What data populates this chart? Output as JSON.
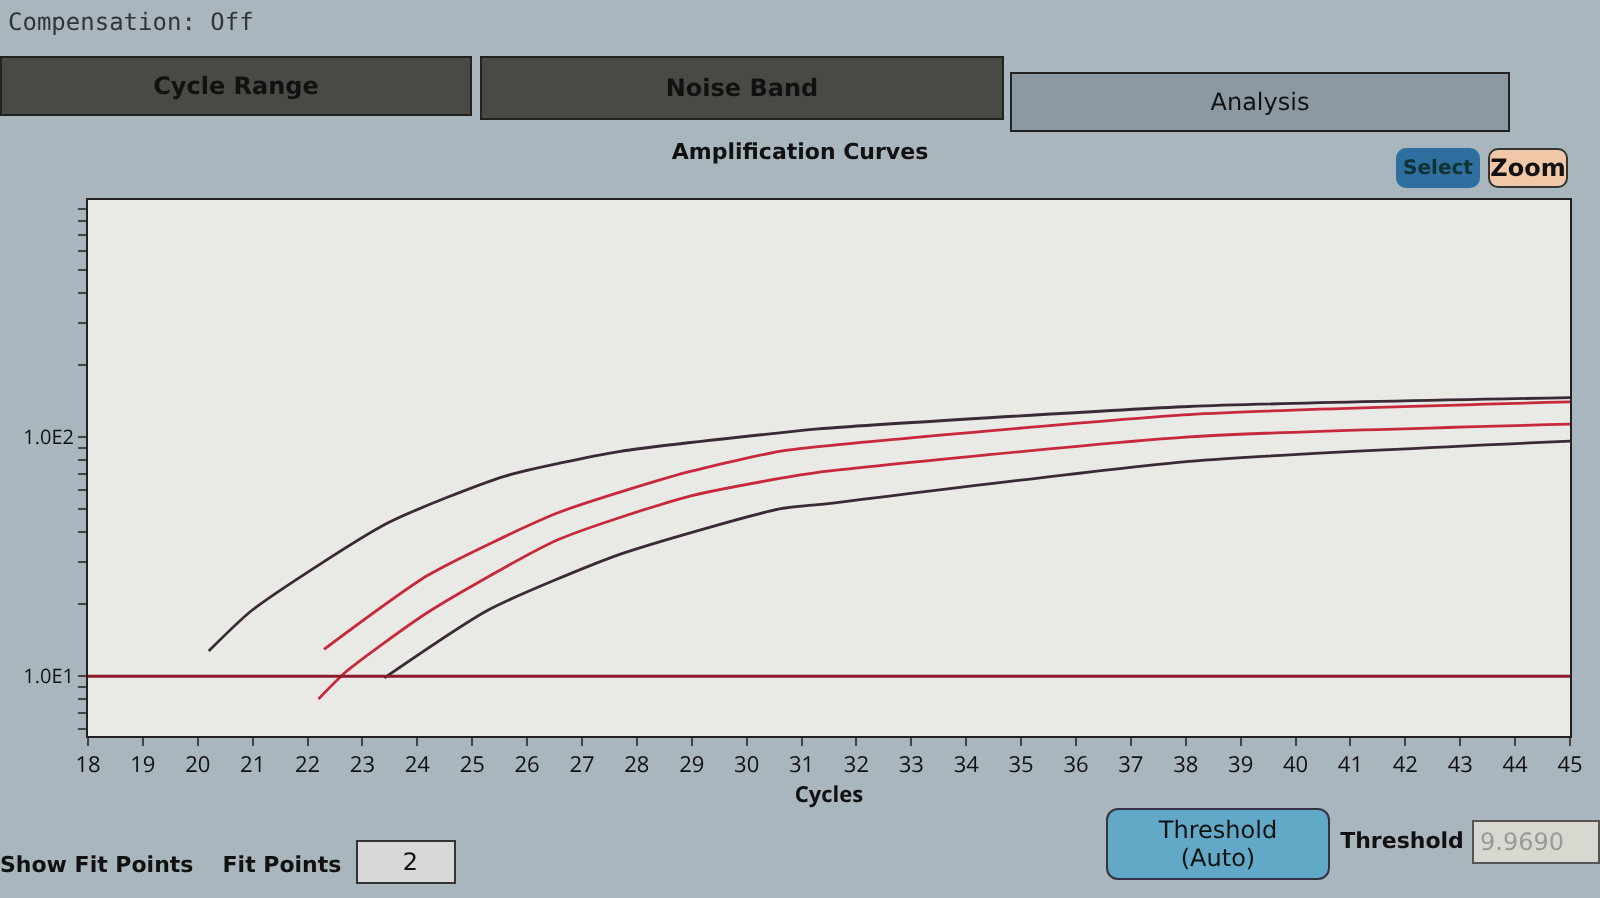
{
  "chart_data": {
    "type": "line",
    "title": "Amplification Curves",
    "xlabel": "Cycles",
    "log": "y",
    "xlim": [
      18,
      45
    ],
    "xticks": [
      18,
      19,
      20,
      21,
      22,
      23,
      24,
      25,
      26,
      27,
      28,
      29,
      30,
      31,
      32,
      33,
      34,
      35,
      36,
      37,
      38,
      39,
      40,
      41,
      42,
      43,
      44,
      45
    ],
    "ylim": [
      5.6,
      980
    ],
    "yticks": [
      {
        "value": 6,
        "label": null
      },
      {
        "value": 7,
        "label": null
      },
      {
        "value": 8,
        "label": null
      },
      {
        "value": 9,
        "label": null
      },
      {
        "value": 10,
        "label": "1.0E1"
      },
      {
        "value": 20,
        "label": null
      },
      {
        "value": 30,
        "label": null
      },
      {
        "value": 40,
        "label": null
      },
      {
        "value": 50,
        "label": null
      },
      {
        "value": 60,
        "label": null
      },
      {
        "value": 70,
        "label": null
      },
      {
        "value": 80,
        "label": null
      },
      {
        "value": 90,
        "label": null
      },
      {
        "value": 100,
        "label": "1.0E2"
      },
      {
        "value": 200,
        "label": null
      },
      {
        "value": 300,
        "label": null
      },
      {
        "value": 400,
        "label": null
      },
      {
        "value": 500,
        "label": null
      },
      {
        "value": 600,
        "label": null
      },
      {
        "value": 700,
        "label": null
      },
      {
        "value": 800,
        "label": null
      },
      {
        "value": 900,
        "label": null
      }
    ],
    "grid": false,
    "marker": "none",
    "line_style": "solid",
    "series": [
      {
        "color": "#3a2a35",
        "x": [
          20.2,
          21.0,
          23.45,
          25.6,
          27.7,
          30.6,
          31.3,
          38.06,
          45
        ],
        "values": [
          12.7,
          18.9,
          43.5,
          68.5,
          87,
          104,
          108,
          134,
          146
        ]
      },
      {
        "color": "#c8283c",
        "x": [
          22.3,
          24.2,
          26.55,
          28.9,
          30.6,
          31.3,
          38.06,
          45
        ],
        "values": [
          12.9,
          26.4,
          48,
          71,
          87,
          91,
          124,
          140
        ]
      },
      {
        "color": "#c8283c",
        "x": [
          22.2,
          22.7,
          24.2,
          26.55,
          28.9,
          30.6,
          31.3,
          38.06,
          45
        ],
        "values": [
          8.0,
          10.4,
          18.5,
          37,
          56,
          67,
          71,
          100,
          113
        ]
      },
      {
        "color": "#3a2a35",
        "x": [
          23.4,
          25.3,
          27.7,
          30.6,
          31.3,
          38.06,
          45
        ],
        "values": [
          9.8,
          18.9,
          32.3,
          50,
          52,
          79,
          96
        ]
      }
    ],
    "ref_lines": [
      {
        "axis": "y",
        "value": 9.969,
        "color": "#8b1a2a"
      }
    ],
    "annotations": [
      "Compensation: Off",
      "Cycle Range",
      "Noise Band",
      "Analysis",
      "Select",
      "Zoom",
      "Show Fit Points",
      "Fit Points",
      "2",
      "Threshold\n(Auto)",
      "Threshold",
      "9.9690"
    ]
  }
}
